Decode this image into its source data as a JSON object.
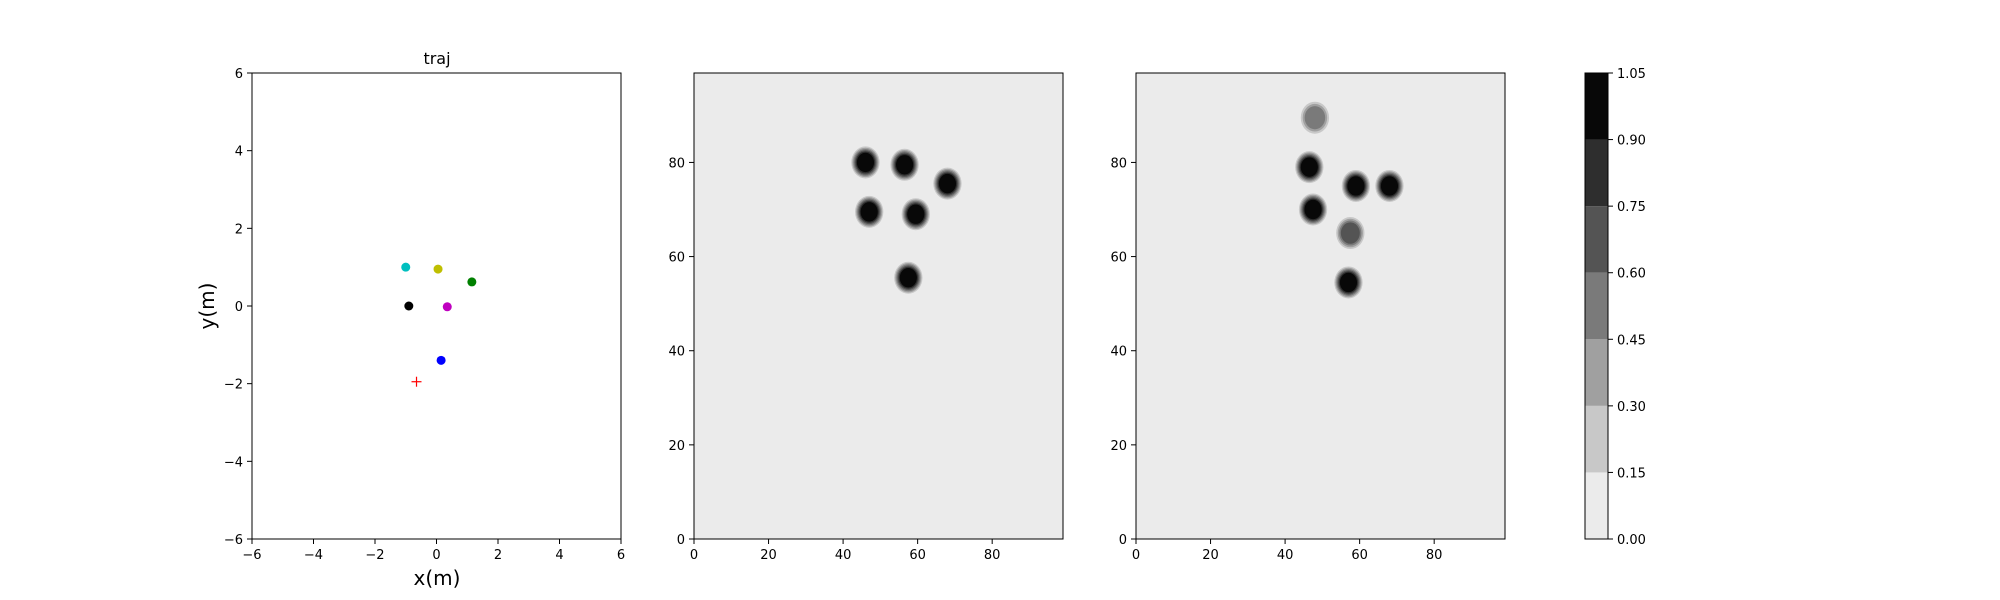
{
  "chart_data": [
    {
      "type": "scatter",
      "title": "traj",
      "xlabel": "x(m)",
      "ylabel": "y(m)",
      "xlim": [
        -6,
        6
      ],
      "ylim": [
        -6,
        6
      ],
      "xticks": [
        -6,
        -4,
        -2,
        0,
        2,
        4,
        6
      ],
      "yticks": [
        -6,
        -4,
        -2,
        0,
        2,
        4,
        6
      ],
      "grid": false,
      "points": [
        {
          "x": -1.0,
          "y": 1.0,
          "color": "#00bfbf",
          "marker": "circle"
        },
        {
          "x": 0.05,
          "y": 0.95,
          "color": "#bfbf00",
          "marker": "circle"
        },
        {
          "x": 1.15,
          "y": 0.62,
          "color": "#008000",
          "marker": "circle"
        },
        {
          "x": -0.9,
          "y": 0.0,
          "color": "#000000",
          "marker": "circle"
        },
        {
          "x": 0.35,
          "y": -0.02,
          "color": "#bf00bf",
          "marker": "circle"
        },
        {
          "x": 0.15,
          "y": -1.4,
          "color": "#0000ff",
          "marker": "circle"
        }
      ],
      "goal": {
        "x": -0.65,
        "y": -1.95,
        "color": "#ff0000",
        "marker": "plus"
      }
    },
    {
      "type": "heatmap",
      "xlim": [
        0,
        99
      ],
      "ylim": [
        0,
        99
      ],
      "xticks": [
        0,
        20,
        40,
        60,
        80
      ],
      "yticks": [
        0,
        20,
        40,
        60,
        80
      ],
      "background_color": "#ebebeb",
      "blobs": [
        {
          "x": 46,
          "y": 80,
          "level": 1.0
        },
        {
          "x": 56.5,
          "y": 79.5,
          "level": 1.0
        },
        {
          "x": 68,
          "y": 75.5,
          "level": 1.0
        },
        {
          "x": 47,
          "y": 69.5,
          "level": 1.0
        },
        {
          "x": 59.5,
          "y": 69,
          "level": 1.0
        },
        {
          "x": 57.5,
          "y": 55.5,
          "level": 1.0
        }
      ]
    },
    {
      "type": "heatmap",
      "xlim": [
        0,
        99
      ],
      "ylim": [
        0,
        99
      ],
      "xticks": [
        0,
        20,
        40,
        60,
        80
      ],
      "yticks": [
        0,
        20,
        40,
        60,
        80
      ],
      "background_color": "#ebebeb",
      "blobs": [
        {
          "x": 48,
          "y": 89.5,
          "level": 0.45
        },
        {
          "x": 46.5,
          "y": 79,
          "level": 1.0
        },
        {
          "x": 47.5,
          "y": 70,
          "level": 1.0
        },
        {
          "x": 59,
          "y": 75,
          "level": 0.9
        },
        {
          "x": 68,
          "y": 75,
          "level": 1.0
        },
        {
          "x": 57.5,
          "y": 65,
          "level": 0.6
        },
        {
          "x": 57,
          "y": 54.5,
          "level": 1.0
        }
      ]
    }
  ],
  "colorbar": {
    "levels": [
      0.0,
      0.15,
      0.3,
      0.45,
      0.6,
      0.75,
      0.9,
      1.05
    ],
    "tick_labels": [
      "0.00",
      "0.15",
      "0.30",
      "0.45",
      "0.60",
      "0.75",
      "0.90",
      "1.05"
    ],
    "colors": [
      "#ebebeb",
      "#c8c8c8",
      "#a0a0a0",
      "#7a7a7a",
      "#545454",
      "#2e2e2e",
      "#080808"
    ]
  }
}
